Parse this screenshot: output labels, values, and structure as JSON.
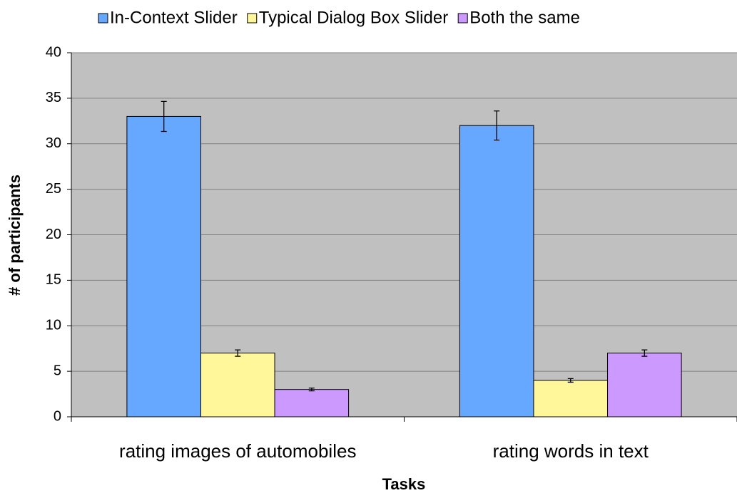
{
  "chart_data": {
    "type": "bar",
    "x_label": "Tasks",
    "y_label": "# of participants",
    "categories": [
      "rating images of automobiles",
      "rating words in text"
    ],
    "series": [
      {
        "name": "In-Context Slider",
        "color": "#66a8ff",
        "values": [
          33,
          32
        ],
        "errors": [
          1.65,
          1.6
        ]
      },
      {
        "name": "Typical Dialog Box Slider",
        "color": "#fff799",
        "values": [
          7,
          4
        ],
        "errors": [
          0.35,
          0.2
        ]
      },
      {
        "name": "Both the same",
        "color": "#cc99ff",
        "values": [
          3,
          7
        ],
        "errors": [
          0.15,
          0.35
        ]
      }
    ],
    "ylim": [
      0,
      40
    ],
    "yticks": [
      0,
      5,
      10,
      15,
      20,
      25,
      30,
      35,
      40
    ],
    "grid": true,
    "legend": "top",
    "plot_background": "#c0c0c0"
  }
}
